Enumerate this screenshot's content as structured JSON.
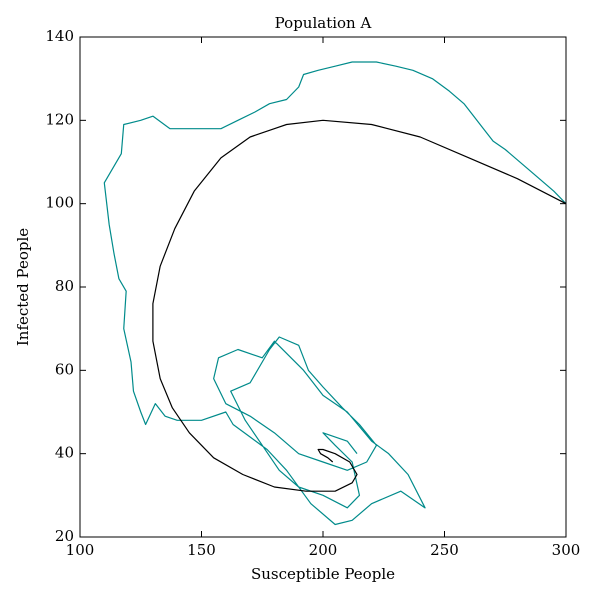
{
  "chart_data": {
    "type": "line",
    "title": "Population A",
    "x_label": "Susceptible People",
    "y_label": "Infected People",
    "xlim": [
      100,
      300
    ],
    "ylim": [
      20,
      140
    ],
    "xticks": [
      100,
      150,
      200,
      250,
      300
    ],
    "yticks": [
      20,
      40,
      60,
      80,
      100,
      120,
      140
    ],
    "grid": false,
    "series": [
      {
        "color": "#008b8b",
        "x": [
          300,
          295,
          285,
          275,
          270,
          262,
          258,
          252,
          245,
          237,
          230,
          222,
          212,
          205,
          198,
          192,
          190,
          185,
          178,
          172,
          165,
          158,
          150,
          143,
          137,
          130,
          125,
          118,
          117,
          110,
          112,
          114,
          116,
          119,
          118,
          121,
          122,
          125,
          127,
          131,
          135,
          140,
          150,
          160,
          163,
          170,
          177,
          185,
          195,
          205,
          212,
          220,
          232,
          242,
          235,
          227,
          220,
          210,
          200,
          192,
          180,
          175,
          165,
          157,
          155,
          160,
          170,
          180,
          190,
          200,
          210,
          218,
          222,
          215,
          208,
          200,
          194,
          190,
          182,
          178,
          170,
          162,
          168,
          175,
          182,
          190,
          200,
          210,
          215,
          212,
          205,
          200,
          210,
          214
        ],
        "values": [
          100,
          103,
          108,
          113,
          115,
          121,
          124,
          127,
          130,
          132,
          133,
          134,
          134,
          133,
          132,
          131,
          128,
          125,
          124,
          122,
          120,
          118,
          118,
          118,
          118,
          121,
          120,
          119,
          112,
          105,
          95,
          88,
          82,
          79,
          70,
          62,
          55,
          50,
          47,
          52,
          49,
          48,
          48,
          50,
          47,
          44,
          41,
          36,
          28,
          23,
          24,
          28,
          31,
          27,
          35,
          40,
          43,
          50,
          54,
          60,
          67,
          63,
          65,
          63,
          58,
          52,
          49,
          45,
          40,
          38,
          36,
          38,
          42,
          47,
          51,
          56,
          60,
          66,
          68,
          65,
          57,
          55,
          48,
          42,
          36,
          32,
          30,
          27,
          30,
          38,
          42,
          45,
          43,
          40
        ]
      },
      {
        "color": "#000000",
        "x": [
          300,
          280,
          260,
          240,
          220,
          200,
          185,
          170,
          158,
          147,
          139,
          133,
          130,
          130,
          133,
          138,
          145,
          155,
          167,
          180,
          193,
          205,
          212,
          214,
          211,
          205,
          200,
          198,
          199,
          202,
          204
        ],
        "values": [
          100,
          106,
          111,
          116,
          119,
          120,
          119,
          116,
          111,
          103,
          94,
          85,
          76,
          67,
          58,
          51,
          45,
          39,
          35,
          32,
          31,
          31,
          33,
          35,
          38,
          40,
          41,
          41,
          40,
          39,
          38
        ]
      }
    ]
  }
}
